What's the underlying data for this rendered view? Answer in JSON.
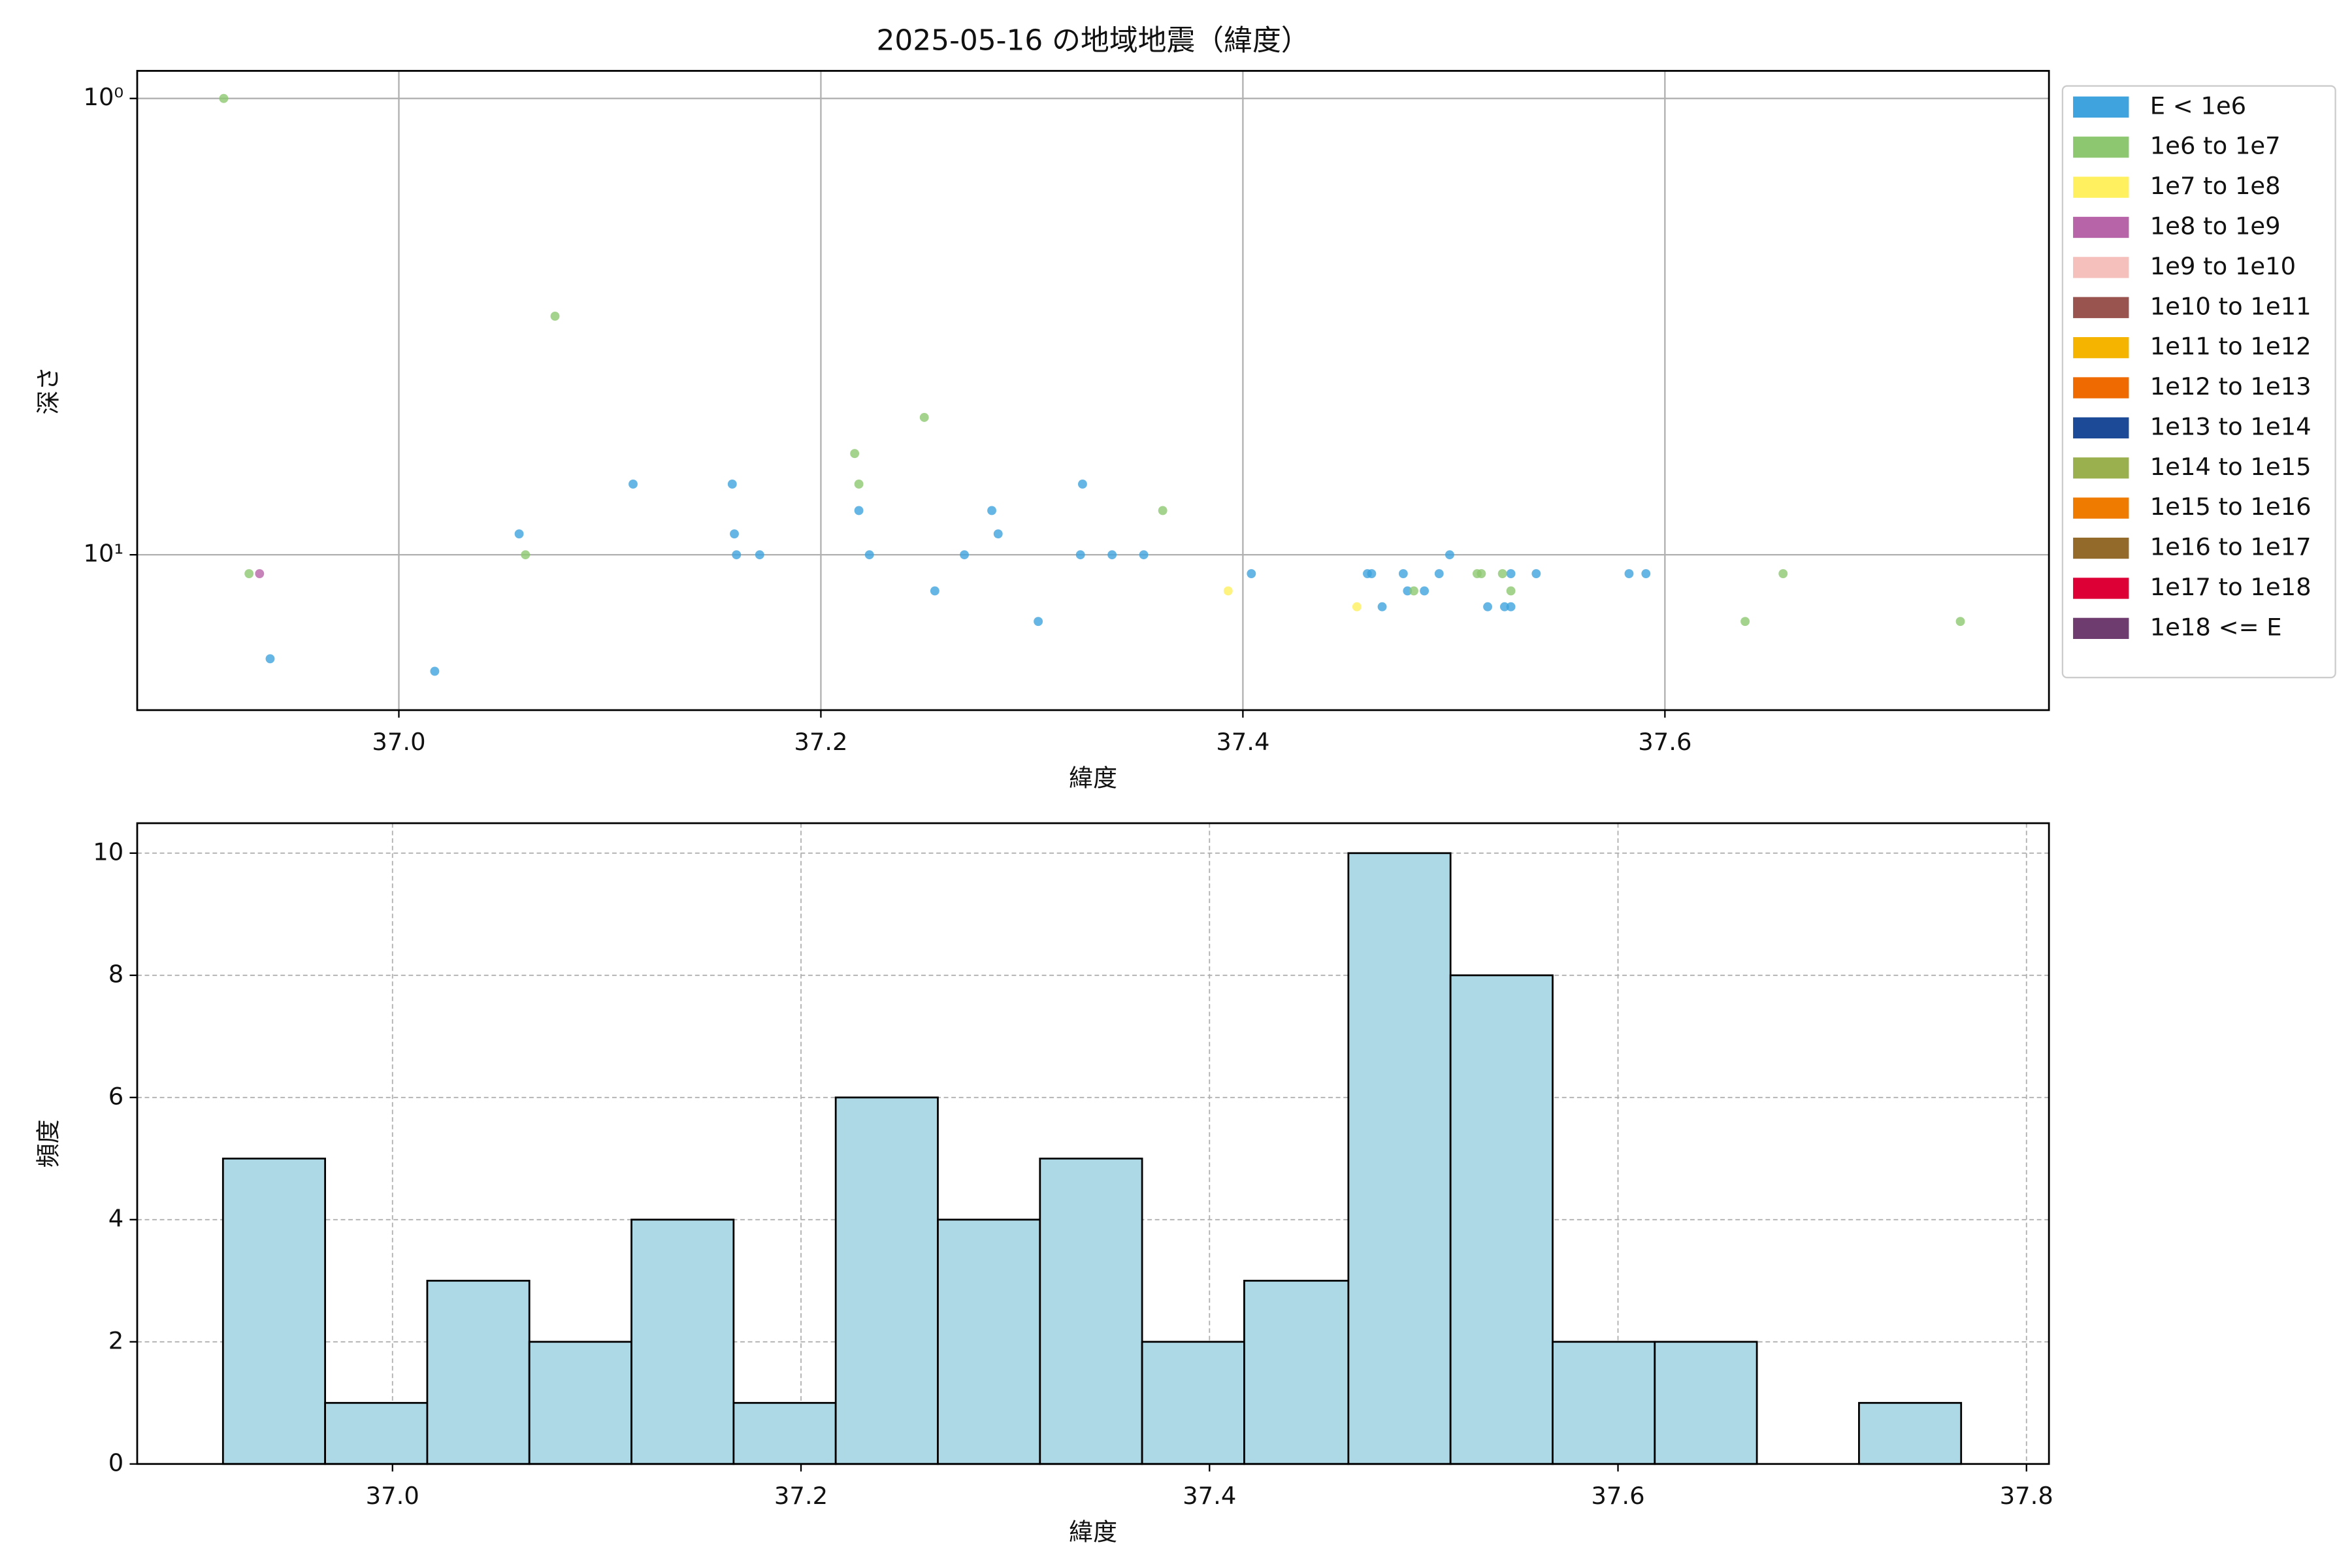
{
  "chart_data": [
    {
      "type": "scatter",
      "title": "2025-05-16 の地域地震（緯度）",
      "x_label": "緯度",
      "y_label": "深さ",
      "xlim": [
        36.876,
        37.782
      ],
      "xticks": [
        {
          "value": 37,
          "label": "37.0"
        },
        {
          "value": 37.2,
          "label": "37.2"
        },
        {
          "value": 37.4,
          "label": "37.4"
        },
        {
          "value": 37.6,
          "label": "37.6"
        }
      ],
      "ylim": [
        21.9,
        0.87
      ],
      "y_log": true,
      "yticks": [
        {
          "value": 1,
          "label": "10⁰"
        },
        {
          "value": 10,
          "label": "10¹"
        }
      ],
      "grid": true,
      "legend": "outside-upper-right",
      "series": [
        {
          "name": "E < 1e6",
          "color": "#3fa4dd",
          "x": [
            36.939,
            37.017,
            37.111,
            37.057,
            37.158,
            37.159,
            37.16,
            37.171,
            37.218,
            37.223,
            37.254,
            37.268,
            37.281,
            37.284,
            37.303,
            37.323,
            37.324,
            37.338,
            37.353,
            37.404,
            37.459,
            37.461,
            37.466,
            37.476,
            37.478,
            37.486,
            37.493,
            37.498,
            37.516,
            37.524,
            37.527,
            37.527,
            37.539,
            37.583,
            37.591
          ],
          "values": [
            16.9,
            18,
            7,
            9,
            7,
            9,
            10,
            10,
            8,
            10,
            12,
            10,
            8,
            9,
            14,
            10,
            7,
            10,
            10,
            11,
            11,
            11,
            13,
            11,
            12,
            12,
            11,
            10,
            13,
            13,
            13,
            11,
            11,
            11,
            11
          ]
        },
        {
          "name": "1e6 to 1e7",
          "color": "#8dc870",
          "x": [
            36.917,
            36.929,
            37.06,
            37.074,
            37.216,
            37.218,
            37.249,
            37.362,
            37.481,
            37.511,
            37.513,
            37.523,
            37.527,
            37.638,
            37.656,
            37.74
          ],
          "values": [
            1,
            11,
            10,
            3,
            6,
            7,
            5,
            8,
            12,
            11,
            11,
            11,
            12,
            14,
            11,
            14
          ]
        },
        {
          "name": "1e7 to 1e8",
          "color": "#fff060",
          "x": [
            37.393,
            37.454
          ],
          "values": [
            12,
            13
          ]
        },
        {
          "name": "1e8 to 1e9",
          "color": "#b864a8",
          "x": [
            36.934
          ],
          "values": [
            11
          ]
        },
        {
          "name": "1e9 to 1e10",
          "color": "#f5c0bb",
          "x": [],
          "values": []
        },
        {
          "name": "1e10 to 1e11",
          "color": "#9a5450",
          "x": [],
          "values": []
        },
        {
          "name": "1e11 to 1e12",
          "color": "#f5b400",
          "x": [],
          "values": []
        },
        {
          "name": "1e12 to 1e13",
          "color": "#ef6a00",
          "x": [],
          "values": []
        },
        {
          "name": "1e13 to 1e14",
          "color": "#1c4a96",
          "x": [],
          "values": []
        },
        {
          "name": "1e14 to 1e15",
          "color": "#9aaf4e",
          "x": [],
          "values": []
        },
        {
          "name": "1e15 to 1e16",
          "color": "#ef7b00",
          "x": [],
          "values": []
        },
        {
          "name": "1e16 to 1e17",
          "color": "#946a2a",
          "x": [],
          "values": []
        },
        {
          "name": "1e17 to 1e18",
          "color": "#dc0037",
          "x": [],
          "values": []
        },
        {
          "name": "1e18 <= E",
          "color": "#6e3c6e",
          "x": [],
          "values": []
        }
      ]
    },
    {
      "type": "histogram",
      "x_label": "緯度",
      "y_label": "頻度",
      "color": "#add8e6",
      "bins": [
        36.917,
        36.967,
        37.017,
        37.067,
        37.117,
        37.167,
        37.217,
        37.267,
        37.317,
        37.367,
        37.417,
        37.468,
        37.518,
        37.568,
        37.618,
        37.668,
        37.718,
        37.768
      ],
      "values": [
        5,
        1,
        3,
        2,
        4,
        1,
        6,
        4,
        5,
        2,
        3,
        10,
        8,
        2,
        2,
        0,
        1
      ],
      "xlim": [
        36.875,
        37.811
      ],
      "xticks": [
        {
          "value": 37,
          "label": "37.0"
        },
        {
          "value": 37.2,
          "label": "37.2"
        },
        {
          "value": 37.4,
          "label": "37.4"
        },
        {
          "value": 37.6,
          "label": "37.6"
        },
        {
          "value": 37.8,
          "label": "37.8"
        }
      ],
      "ylim": [
        0,
        10.49
      ],
      "yticks": [
        0,
        2,
        4,
        6,
        8,
        10
      ],
      "grid": true
    }
  ]
}
